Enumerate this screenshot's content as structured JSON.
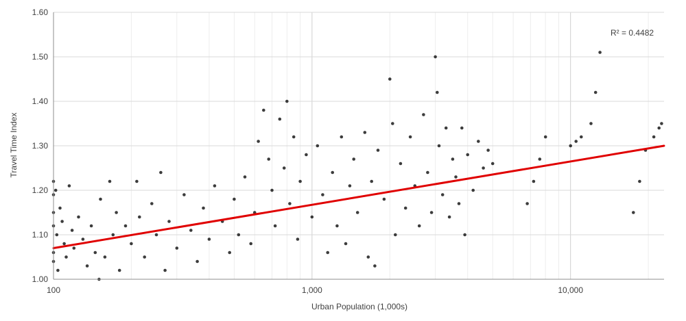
{
  "chart_data": {
    "type": "scatter",
    "title": "",
    "xlabel": "Urban Population (1,000s)",
    "ylabel": "Travel Time Index",
    "x_scale": "log",
    "xlim": [
      100,
      23000
    ],
    "ylim": [
      1.0,
      1.6
    ],
    "grid": true,
    "x_major_ticks": [
      100,
      1000,
      10000
    ],
    "x_tick_labels": [
      "100",
      "1,000",
      "10,000"
    ],
    "y_ticks": [
      1.0,
      1.1,
      1.2,
      1.3,
      1.4,
      1.5,
      1.6
    ],
    "y_tick_labels": [
      "1.00",
      "1.10",
      "1.20",
      "1.30",
      "1.40",
      "1.50",
      "1.60"
    ],
    "trendline": {
      "type": "logarithmic",
      "color": "#e00000",
      "from": {
        "x": 100,
        "y": 1.07
      },
      "to": {
        "x": 23000,
        "y": 1.3
      }
    },
    "annotation": "R² = 0.4482",
    "marker_color": "#1a1a1a",
    "series": [
      {
        "values": [
          [
            100,
            1.22
          ],
          [
            100,
            1.19
          ],
          [
            100,
            1.15
          ],
          [
            100,
            1.12
          ],
          [
            100,
            1.06
          ],
          [
            100,
            1.04
          ],
          [
            102,
            1.2
          ],
          [
            103,
            1.1
          ],
          [
            104,
            1.02
          ],
          [
            106,
            1.16
          ],
          [
            108,
            1.13
          ],
          [
            110,
            1.08
          ],
          [
            112,
            1.05
          ],
          [
            115,
            1.21
          ],
          [
            118,
            1.11
          ],
          [
            120,
            1.07
          ],
          [
            125,
            1.14
          ],
          [
            130,
            1.09
          ],
          [
            135,
            1.03
          ],
          [
            140,
            1.12
          ],
          [
            145,
            1.06
          ],
          [
            150,
            1.0
          ],
          [
            152,
            1.18
          ],
          [
            158,
            1.05
          ],
          [
            165,
            1.22
          ],
          [
            170,
            1.1
          ],
          [
            175,
            1.15
          ],
          [
            180,
            1.02
          ],
          [
            190,
            1.12
          ],
          [
            200,
            1.08
          ],
          [
            210,
            1.22
          ],
          [
            215,
            1.14
          ],
          [
            225,
            1.05
          ],
          [
            240,
            1.17
          ],
          [
            250,
            1.1
          ],
          [
            260,
            1.24
          ],
          [
            270,
            1.02
          ],
          [
            280,
            1.13
          ],
          [
            300,
            1.07
          ],
          [
            320,
            1.19
          ],
          [
            340,
            1.11
          ],
          [
            360,
            1.04
          ],
          [
            380,
            1.16
          ],
          [
            400,
            1.09
          ],
          [
            420,
            1.21
          ],
          [
            450,
            1.13
          ],
          [
            480,
            1.06
          ],
          [
            500,
            1.18
          ],
          [
            520,
            1.1
          ],
          [
            550,
            1.23
          ],
          [
            580,
            1.08
          ],
          [
            600,
            1.15
          ],
          [
            620,
            1.31
          ],
          [
            650,
            1.38
          ],
          [
            680,
            1.27
          ],
          [
            700,
            1.2
          ],
          [
            720,
            1.12
          ],
          [
            750,
            1.36
          ],
          [
            780,
            1.25
          ],
          [
            800,
            1.4
          ],
          [
            820,
            1.17
          ],
          [
            850,
            1.32
          ],
          [
            880,
            1.09
          ],
          [
            900,
            1.22
          ],
          [
            950,
            1.28
          ],
          [
            1000,
            1.14
          ],
          [
            1050,
            1.3
          ],
          [
            1100,
            1.19
          ],
          [
            1150,
            1.06
          ],
          [
            1200,
            1.24
          ],
          [
            1250,
            1.12
          ],
          [
            1300,
            1.32
          ],
          [
            1350,
            1.08
          ],
          [
            1400,
            1.21
          ],
          [
            1450,
            1.27
          ],
          [
            1500,
            1.15
          ],
          [
            1600,
            1.33
          ],
          [
            1650,
            1.05
          ],
          [
            1700,
            1.22
          ],
          [
            1750,
            1.03
          ],
          [
            1800,
            1.29
          ],
          [
            1900,
            1.18
          ],
          [
            2000,
            1.45
          ],
          [
            2050,
            1.35
          ],
          [
            2100,
            1.1
          ],
          [
            2200,
            1.26
          ],
          [
            2300,
            1.16
          ],
          [
            2400,
            1.32
          ],
          [
            2500,
            1.21
          ],
          [
            2600,
            1.12
          ],
          [
            2700,
            1.37
          ],
          [
            2800,
            1.24
          ],
          [
            2900,
            1.15
          ],
          [
            3000,
            1.5
          ],
          [
            3050,
            1.42
          ],
          [
            3100,
            1.3
          ],
          [
            3200,
            1.19
          ],
          [
            3300,
            1.34
          ],
          [
            3400,
            1.14
          ],
          [
            3500,
            1.27
          ],
          [
            3600,
            1.23
          ],
          [
            3700,
            1.17
          ],
          [
            3800,
            1.34
          ],
          [
            3900,
            1.1
          ],
          [
            4000,
            1.28
          ],
          [
            4200,
            1.2
          ],
          [
            4400,
            1.31
          ],
          [
            4600,
            1.25
          ],
          [
            4800,
            1.29
          ],
          [
            5000,
            1.26
          ],
          [
            6800,
            1.17
          ],
          [
            7200,
            1.22
          ],
          [
            7600,
            1.27
          ],
          [
            8000,
            1.32
          ],
          [
            10000,
            1.3
          ],
          [
            10500,
            1.31
          ],
          [
            11000,
            1.32
          ],
          [
            12000,
            1.35
          ],
          [
            12500,
            1.42
          ],
          [
            13000,
            1.51
          ],
          [
            17500,
            1.15
          ],
          [
            18500,
            1.22
          ],
          [
            19500,
            1.29
          ],
          [
            21000,
            1.32
          ],
          [
            22000,
            1.34
          ],
          [
            22500,
            1.35
          ]
        ]
      }
    ]
  }
}
